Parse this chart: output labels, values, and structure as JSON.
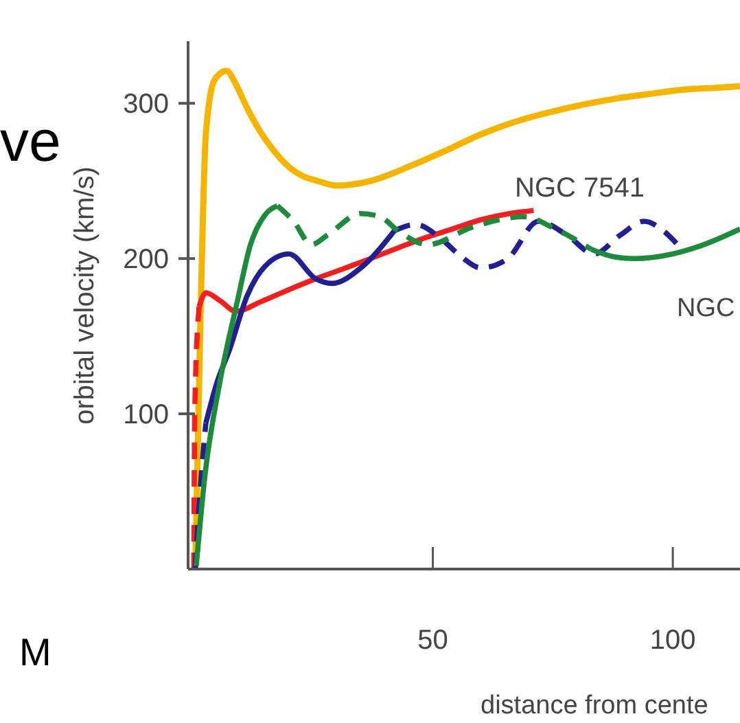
{
  "chart_data": {
    "type": "line",
    "ylabel": "orbital velocity (km/s)",
    "xlabel": "distance from cente",
    "xlim": [
      -1,
      114
    ],
    "ylim": [
      0,
      340
    ],
    "xticks": [
      50,
      100
    ],
    "yticks": [
      100,
      200,
      300
    ],
    "grid": false,
    "marker": "none",
    "series": [
      {
        "color": "#f5b400",
        "line_style": "solid",
        "x": [
          0.5,
          1.5,
          2.7,
          4.5,
          7,
          9,
          11.3,
          14,
          17,
          20,
          23,
          26,
          30,
          37,
          45.6,
          53,
          60,
          67,
          74,
          81,
          88,
          95,
          103,
          109,
          114
        ],
        "values": [
          0,
          150,
          280,
          315,
          321,
          312,
          297,
          282,
          269,
          259,
          253,
          250,
          247,
          250,
          260,
          270,
          280,
          288,
          294,
          299,
          303,
          306,
          309,
          310,
          311
        ]
      },
      {
        "color": "#f02020",
        "line_style": "dashed",
        "x": [
          0.2,
          0.4,
          1.3
        ],
        "values": [
          0,
          103,
          169
        ]
      },
      {
        "color": "#f02020",
        "line_style": "solid",
        "x": [
          1.3,
          2.7,
          5.6,
          9,
          14,
          20,
          25.6,
          31,
          37,
          42,
          48,
          54,
          60,
          66,
          71
        ],
        "values": [
          169,
          178,
          173,
          166,
          172,
          180,
          187,
          193,
          200,
          206,
          213,
          219,
          225,
          229,
          231
        ]
      },
      {
        "color": "#222090",
        "line_style": "dashed",
        "x": [
          0.5,
          1.5,
          2.7
        ],
        "values": [
          0,
          50,
          94
        ]
      },
      {
        "color": "#222090",
        "line_style": "solid",
        "x": [
          2.7,
          5,
          7.6,
          11.3,
          15,
          20,
          25.6,
          29,
          35,
          42
        ],
        "values": [
          94,
          120,
          141,
          176,
          195,
          203,
          187,
          184,
          194,
          218
        ]
      },
      {
        "color": "#222090",
        "line_style": "dashed",
        "x": [
          42,
          46.4,
          52,
          56,
          60,
          65.6,
          72,
          78,
          83.6,
          89,
          94,
          98,
          101
        ],
        "values": [
          218,
          222,
          212,
          201,
          194,
          200,
          224,
          215,
          203,
          215,
          224,
          218,
          209
        ]
      },
      {
        "color": "#1e8a3c",
        "line_style": "solid",
        "x": [
          0.7,
          2.5,
          5.6,
          9.3,
          12,
          15,
          17.6
        ],
        "values": [
          2,
          60,
          120,
          173,
          209,
          228,
          234
        ]
      },
      {
        "color": "#1e8a3c",
        "line_style": "dashed",
        "x": [
          17.6,
          21,
          24.7,
          28,
          35,
          39,
          42.7,
          49,
          58,
          69,
          75,
          83
        ],
        "values": [
          234,
          224,
          209,
          215,
          229,
          227,
          218,
          209,
          220,
          227,
          220,
          206
        ]
      },
      {
        "color": "#1e8a3c",
        "line_style": "solid",
        "x": [
          83,
          88,
          92,
          100,
          106.5,
          114
        ],
        "values": [
          206,
          201,
          200,
          203,
          209,
          219
        ]
      }
    ],
    "annotations": [
      "NGC 7541",
      "NGC",
      "ve",
      "M"
    ]
  }
}
